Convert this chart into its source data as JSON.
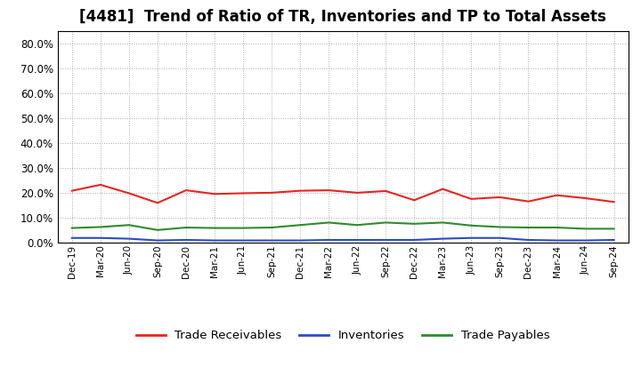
{
  "title": "[4481]  Trend of Ratio of TR, Inventories and TP to Total Assets",
  "x_labels": [
    "Dec-19",
    "Mar-20",
    "Jun-20",
    "Sep-20",
    "Dec-20",
    "Mar-21",
    "Jun-21",
    "Sep-21",
    "Dec-21",
    "Mar-22",
    "Jun-22",
    "Sep-22",
    "Dec-22",
    "Mar-23",
    "Jun-23",
    "Sep-23",
    "Dec-23",
    "Mar-24",
    "Jun-24",
    "Sep-24"
  ],
  "trade_receivables": [
    0.208,
    0.232,
    0.198,
    0.159,
    0.21,
    0.195,
    0.198,
    0.2,
    0.208,
    0.21,
    0.2,
    0.207,
    0.17,
    0.215,
    0.175,
    0.182,
    0.165,
    0.19,
    0.178,
    0.163
  ],
  "inventories": [
    0.018,
    0.018,
    0.015,
    0.008,
    0.01,
    0.008,
    0.008,
    0.008,
    0.008,
    0.01,
    0.01,
    0.01,
    0.01,
    0.015,
    0.018,
    0.018,
    0.01,
    0.008,
    0.008,
    0.01
  ],
  "trade_payables": [
    0.058,
    0.062,
    0.07,
    0.05,
    0.06,
    0.058,
    0.058,
    0.06,
    0.07,
    0.08,
    0.07,
    0.08,
    0.075,
    0.08,
    0.068,
    0.062,
    0.06,
    0.06,
    0.055,
    0.055
  ],
  "color_tr": "#e8251f",
  "color_inv": "#2a4cc7",
  "color_tp": "#2e8b2e",
  "ylim": [
    0.0,
    0.85
  ],
  "yticks": [
    0.0,
    0.1,
    0.2,
    0.3,
    0.4,
    0.5,
    0.6,
    0.7,
    0.8
  ],
  "legend_labels": [
    "Trade Receivables",
    "Inventories",
    "Trade Payables"
  ],
  "bg_color": "#ffffff",
  "plot_bg_color": "#ffffff",
  "title_fontsize": 12
}
